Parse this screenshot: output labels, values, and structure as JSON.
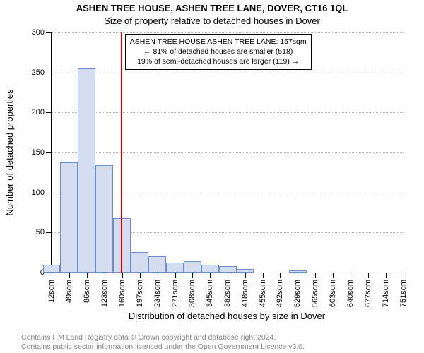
{
  "title": "ASHEN TREE HOUSE, ASHEN TREE LANE, DOVER, CT16 1QL",
  "subtitle": "Size of property relative to detached houses in Dover",
  "xlabel": "Distribution of detached houses by size in Dover",
  "ylabel": "Number of detached properties",
  "footer_line1": "Contains HM Land Registry data © Crown copyright and database right 2024.",
  "footer_line2": "Contains public sector information licensed under the Open Government Licence v3.0.",
  "chart": {
    "type": "bar",
    "ylim": [
      0,
      300
    ],
    "ytick_step": 50,
    "background_color": "#ffffff",
    "grid_color": "#b5b5b5",
    "bar_fill": "#d3ddef",
    "bar_border": "#6b8ec9",
    "marker_color": "#cc0000",
    "marker_position": 157,
    "bar_width_units": 37,
    "bars": [
      {
        "x": 12,
        "value": 10
      },
      {
        "x": 49,
        "value": 138
      },
      {
        "x": 86,
        "value": 255
      },
      {
        "x": 123,
        "value": 134
      },
      {
        "x": 160,
        "value": 68
      },
      {
        "x": 197,
        "value": 26
      },
      {
        "x": 234,
        "value": 20
      },
      {
        "x": 271,
        "value": 12
      },
      {
        "x": 308,
        "value": 14
      },
      {
        "x": 345,
        "value": 10
      },
      {
        "x": 382,
        "value": 8
      },
      {
        "x": 418,
        "value": 4
      },
      {
        "x": 455,
        "value": 0
      },
      {
        "x": 492,
        "value": 0
      },
      {
        "x": 529,
        "value": 3
      },
      {
        "x": 565,
        "value": 0
      },
      {
        "x": 603,
        "value": 0
      },
      {
        "x": 640,
        "value": 0
      },
      {
        "x": 677,
        "value": 0
      },
      {
        "x": 714,
        "value": 0
      },
      {
        "x": 751,
        "value": 0
      }
    ],
    "xtick_suffix": "sqm"
  },
  "annotation": {
    "line1": "ASHEN TREE HOUSE ASHEN TREE LANE: 157sqm",
    "line2": "← 81% of detached houses are smaller (518)",
    "line3": "19% of semi-detached houses are larger (119) →"
  }
}
